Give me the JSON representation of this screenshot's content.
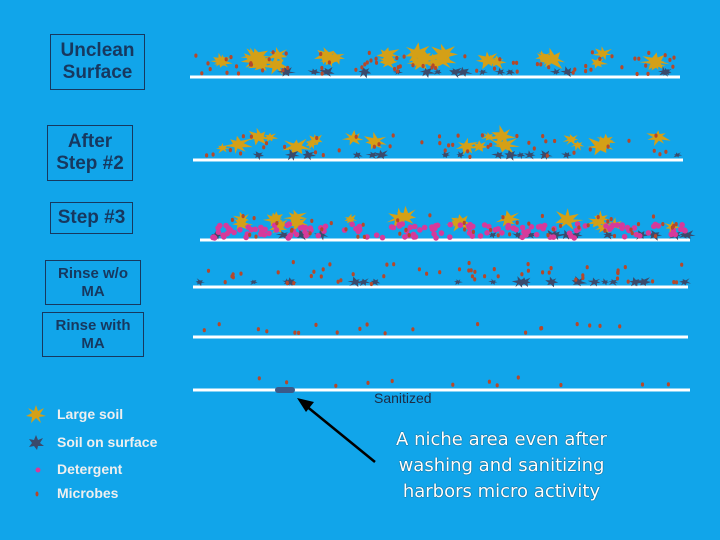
{
  "stages": [
    {
      "label": "Unclean\nSurface",
      "large_soil": 34,
      "surface_soil": 16,
      "detergent": 0,
      "microbes": 70
    },
    {
      "label": "After\nStep #2",
      "large_soil": 20,
      "surface_soil": 16,
      "detergent": 0,
      "microbes": 45
    },
    {
      "label": "Step #3",
      "large_soil": 22,
      "surface_soil": 18,
      "detergent": 150,
      "microbes": 50
    },
    {
      "label": "Rinse w/o\nMA",
      "large_soil": 0,
      "surface_soil": 20,
      "detergent": 0,
      "microbes": 55
    },
    {
      "label": "Rinse with\nMA",
      "large_soil": 0,
      "surface_soil": 0,
      "detergent": 0,
      "microbes": 20
    },
    {
      "label": "Sanitized",
      "large_soil": 0,
      "surface_soil": 0,
      "detergent": 0,
      "microbes": 12
    }
  ],
  "legend": [
    {
      "label": "Large soil",
      "icon": "large-soil-icon"
    },
    {
      "label": "Soil on surface",
      "icon": "surface-soil-icon"
    },
    {
      "label": "Detergent",
      "icon": "detergent-dot-icon"
    },
    {
      "label": "Microbes",
      "icon": "microbe-dot-icon"
    }
  ],
  "callout": {
    "lines": [
      "A niche area even after",
      "washing and sanitizing",
      "harbors micro activity"
    ]
  },
  "colors": {
    "background": "#11a5ea",
    "large_soil": "#d4a017",
    "surface_soil": "#3a4a6b",
    "detergent": "#d63a9b",
    "microbe": "#b5482a",
    "surface_line": "#ffffff"
  }
}
